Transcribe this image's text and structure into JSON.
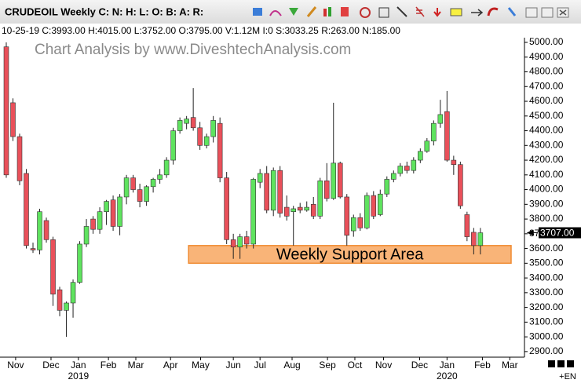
{
  "window": {
    "title": "CRUDEOIL Weekly C: N: H: L: O: B: A: R:"
  },
  "chart_data": {
    "type": "candlestick",
    "info": "10-25-19 C:3993.00 H:4015.00 L:3752.00 O:3795.00 V:1.12M I:0 S:3033.25 R:263.00 N:185.00",
    "watermark": "Chart Analysis by www.DiveshtechAnalysis.com",
    "categories": [
      null,
      null,
      null,
      null,
      null,
      null,
      null,
      null,
      null,
      null,
      null,
      null,
      null,
      null,
      null,
      null,
      null,
      null,
      null,
      null,
      null,
      null,
      null,
      null,
      null,
      null,
      null,
      null,
      null,
      null,
      null,
      null,
      null,
      null,
      null,
      null,
      null,
      null,
      null,
      null,
      null,
      null,
      null,
      null,
      null,
      null,
      null,
      null,
      null,
      null,
      null,
      null,
      null,
      null,
      null,
      null,
      null,
      null,
      null,
      null,
      null,
      null,
      null,
      null,
      null,
      null,
      null,
      null,
      null,
      null,
      null,
      null
    ],
    "open": [
      4970,
      4590,
      4360,
      4110,
      3600,
      3590,
      3790,
      3660,
      3320,
      3180,
      3230,
      3370,
      3630,
      3800,
      3730,
      3850,
      3930,
      3750,
      3950,
      4080,
      4000,
      3920,
      4020,
      4070,
      4100,
      4200,
      4400,
      4450,
      4490,
      4420,
      4300,
      4360,
      4450,
      4080,
      3660,
      3610,
      3680,
      3630,
      4050,
      4110,
      3860,
      4130,
      3880,
      3850,
      3880,
      3860,
      3900,
      3820,
      4060,
      3940,
      4180,
      3950,
      3720,
      3810,
      3740,
      3960,
      3830,
      3970,
      4070,
      4110,
      4160,
      4130,
      4200,
      4260,
      4330,
      4450,
      4530,
      4200,
      4170,
      3830,
      3710,
      3620
    ],
    "high": [
      5000,
      4620,
      4380,
      4140,
      3640,
      3870,
      3810,
      3680,
      3340,
      3240,
      3390,
      3650,
      3800,
      3820,
      3880,
      3930,
      3960,
      3970,
      4100,
      4100,
      4040,
      4030,
      4080,
      4140,
      4220,
      4420,
      4490,
      4500,
      4690,
      4460,
      4380,
      4500,
      4490,
      4120,
      3700,
      3700,
      3720,
      4080,
      4140,
      4160,
      4150,
      4160,
      3960,
      3890,
      3910,
      3920,
      3950,
      4080,
      4180,
      4590,
      4190,
      3970,
      3830,
      3840,
      3980,
      3990,
      4000,
      4090,
      4130,
      4180,
      4190,
      4220,
      4280,
      4350,
      4470,
      4610,
      4670,
      4230,
      4190,
      3850,
      3740,
      3740
    ],
    "low": [
      4080,
      4330,
      4030,
      3600,
      3570,
      3560,
      3640,
      3210,
      3140,
      3000,
      3130,
      3360,
      3610,
      3700,
      3700,
      3760,
      3720,
      3690,
      3900,
      3980,
      3880,
      3890,
      3980,
      4040,
      4080,
      4170,
      4380,
      4410,
      4400,
      4270,
      4280,
      4320,
      4050,
      3630,
      3530,
      3530,
      3600,
      3600,
      4010,
      3840,
      3820,
      3810,
      3790,
      3620,
      3840,
      3850,
      3800,
      3800,
      3920,
      3930,
      3940,
      3620,
      3680,
      3720,
      3730,
      3800,
      3820,
      3950,
      4050,
      4090,
      4110,
      4110,
      4180,
      4250,
      4300,
      4420,
      4190,
      4100,
      3870,
      3650,
      3560,
      3560
    ],
    "close": [
      4100,
      4360,
      4060,
      3620,
      3590,
      3850,
      3660,
      3290,
      3180,
      3230,
      3370,
      3630,
      3750,
      3730,
      3850,
      3920,
      3750,
      3950,
      4080,
      4000,
      3920,
      4020,
      4070,
      4100,
      4200,
      4400,
      4470,
      4480,
      4420,
      4300,
      4360,
      4470,
      4080,
      3660,
      3610,
      3680,
      3630,
      4070,
      4110,
      3860,
      4130,
      3840,
      3820,
      3870,
      3860,
      3880,
      3820,
      4060,
      3940,
      4180,
      3950,
      3690,
      3810,
      3740,
      3960,
      3820,
      3970,
      4070,
      4110,
      4160,
      4130,
      4200,
      4260,
      4330,
      4450,
      4510,
      4200,
      4170,
      3890,
      3680,
      3620,
      3707
    ],
    "up_color": "#5fe35f",
    "down_color": "#e9505a",
    "ylim": [
      2862,
      5112
    ],
    "yticks": [
      {
        "value": 2900,
        "label": "2900.00"
      },
      {
        "value": 3000,
        "label": "3000.00"
      },
      {
        "value": 3100,
        "label": "3100.00"
      },
      {
        "value": 3200,
        "label": "3200.00"
      },
      {
        "value": 3300,
        "label": "3300.00"
      },
      {
        "value": 3400,
        "label": "3400.00"
      },
      {
        "value": 3500,
        "label": "3500.00"
      },
      {
        "value": 3600,
        "label": "3600.00"
      },
      {
        "value": 3700,
        "label": "3700.00"
      },
      {
        "value": 3800,
        "label": "3800.00"
      },
      {
        "value": 3900,
        "label": "3900.00"
      },
      {
        "value": 4000,
        "label": "4000.00"
      },
      {
        "value": 4100,
        "label": "4100.00"
      },
      {
        "value": 4200,
        "label": "4200.00"
      },
      {
        "value": 4300,
        "label": "4300.00"
      },
      {
        "value": 4400,
        "label": "4400.00"
      },
      {
        "value": 4500,
        "label": "4500.00"
      },
      {
        "value": 4600,
        "label": "4600.00"
      },
      {
        "value": 4700,
        "label": "4700.00"
      },
      {
        "value": 4800,
        "label": "4800.00"
      },
      {
        "value": 4900,
        "label": "4900.00"
      },
      {
        "value": 5000,
        "label": "5000.00"
      }
    ],
    "xlim": [
      -0.94,
      77.6
    ],
    "xticks": [
      {
        "value": 1.4,
        "label": "Nov"
      },
      {
        "value": 6.7,
        "label": "Dec"
      },
      {
        "value": 10.8,
        "label": "Jan"
      },
      {
        "value": 15.3,
        "label": "Feb"
      },
      {
        "value": 19.4,
        "label": "Mar"
      },
      {
        "value": 24.6,
        "label": "Apr"
      },
      {
        "value": 29.1,
        "label": "May"
      },
      {
        "value": 34,
        "label": "Jun"
      },
      {
        "value": 38,
        "label": "Jul"
      },
      {
        "value": 42.8,
        "label": "Aug"
      },
      {
        "value": 48.1,
        "label": "Sep"
      },
      {
        "value": 52.2,
        "label": "Oct"
      },
      {
        "value": 56.5,
        "label": "Nov"
      },
      {
        "value": 61.9,
        "label": "Dec"
      },
      {
        "value": 66,
        "label": "Jan"
      },
      {
        "value": 71.3,
        "label": "Feb"
      },
      {
        "value": 75.4,
        "label": "Mar"
      }
    ],
    "year_labels": [
      {
        "value": 10.8,
        "label": "2019"
      },
      {
        "value": 66,
        "label": "2020"
      }
    ],
    "zone": {
      "label": "Weekly Support Area",
      "low": 3500,
      "high": 3620,
      "start": 27.3,
      "end": 75.6,
      "color": "#f9b478"
    },
    "last_price": {
      "value": 3707,
      "label": "3707.00"
    },
    "corner_label": "+EN"
  }
}
